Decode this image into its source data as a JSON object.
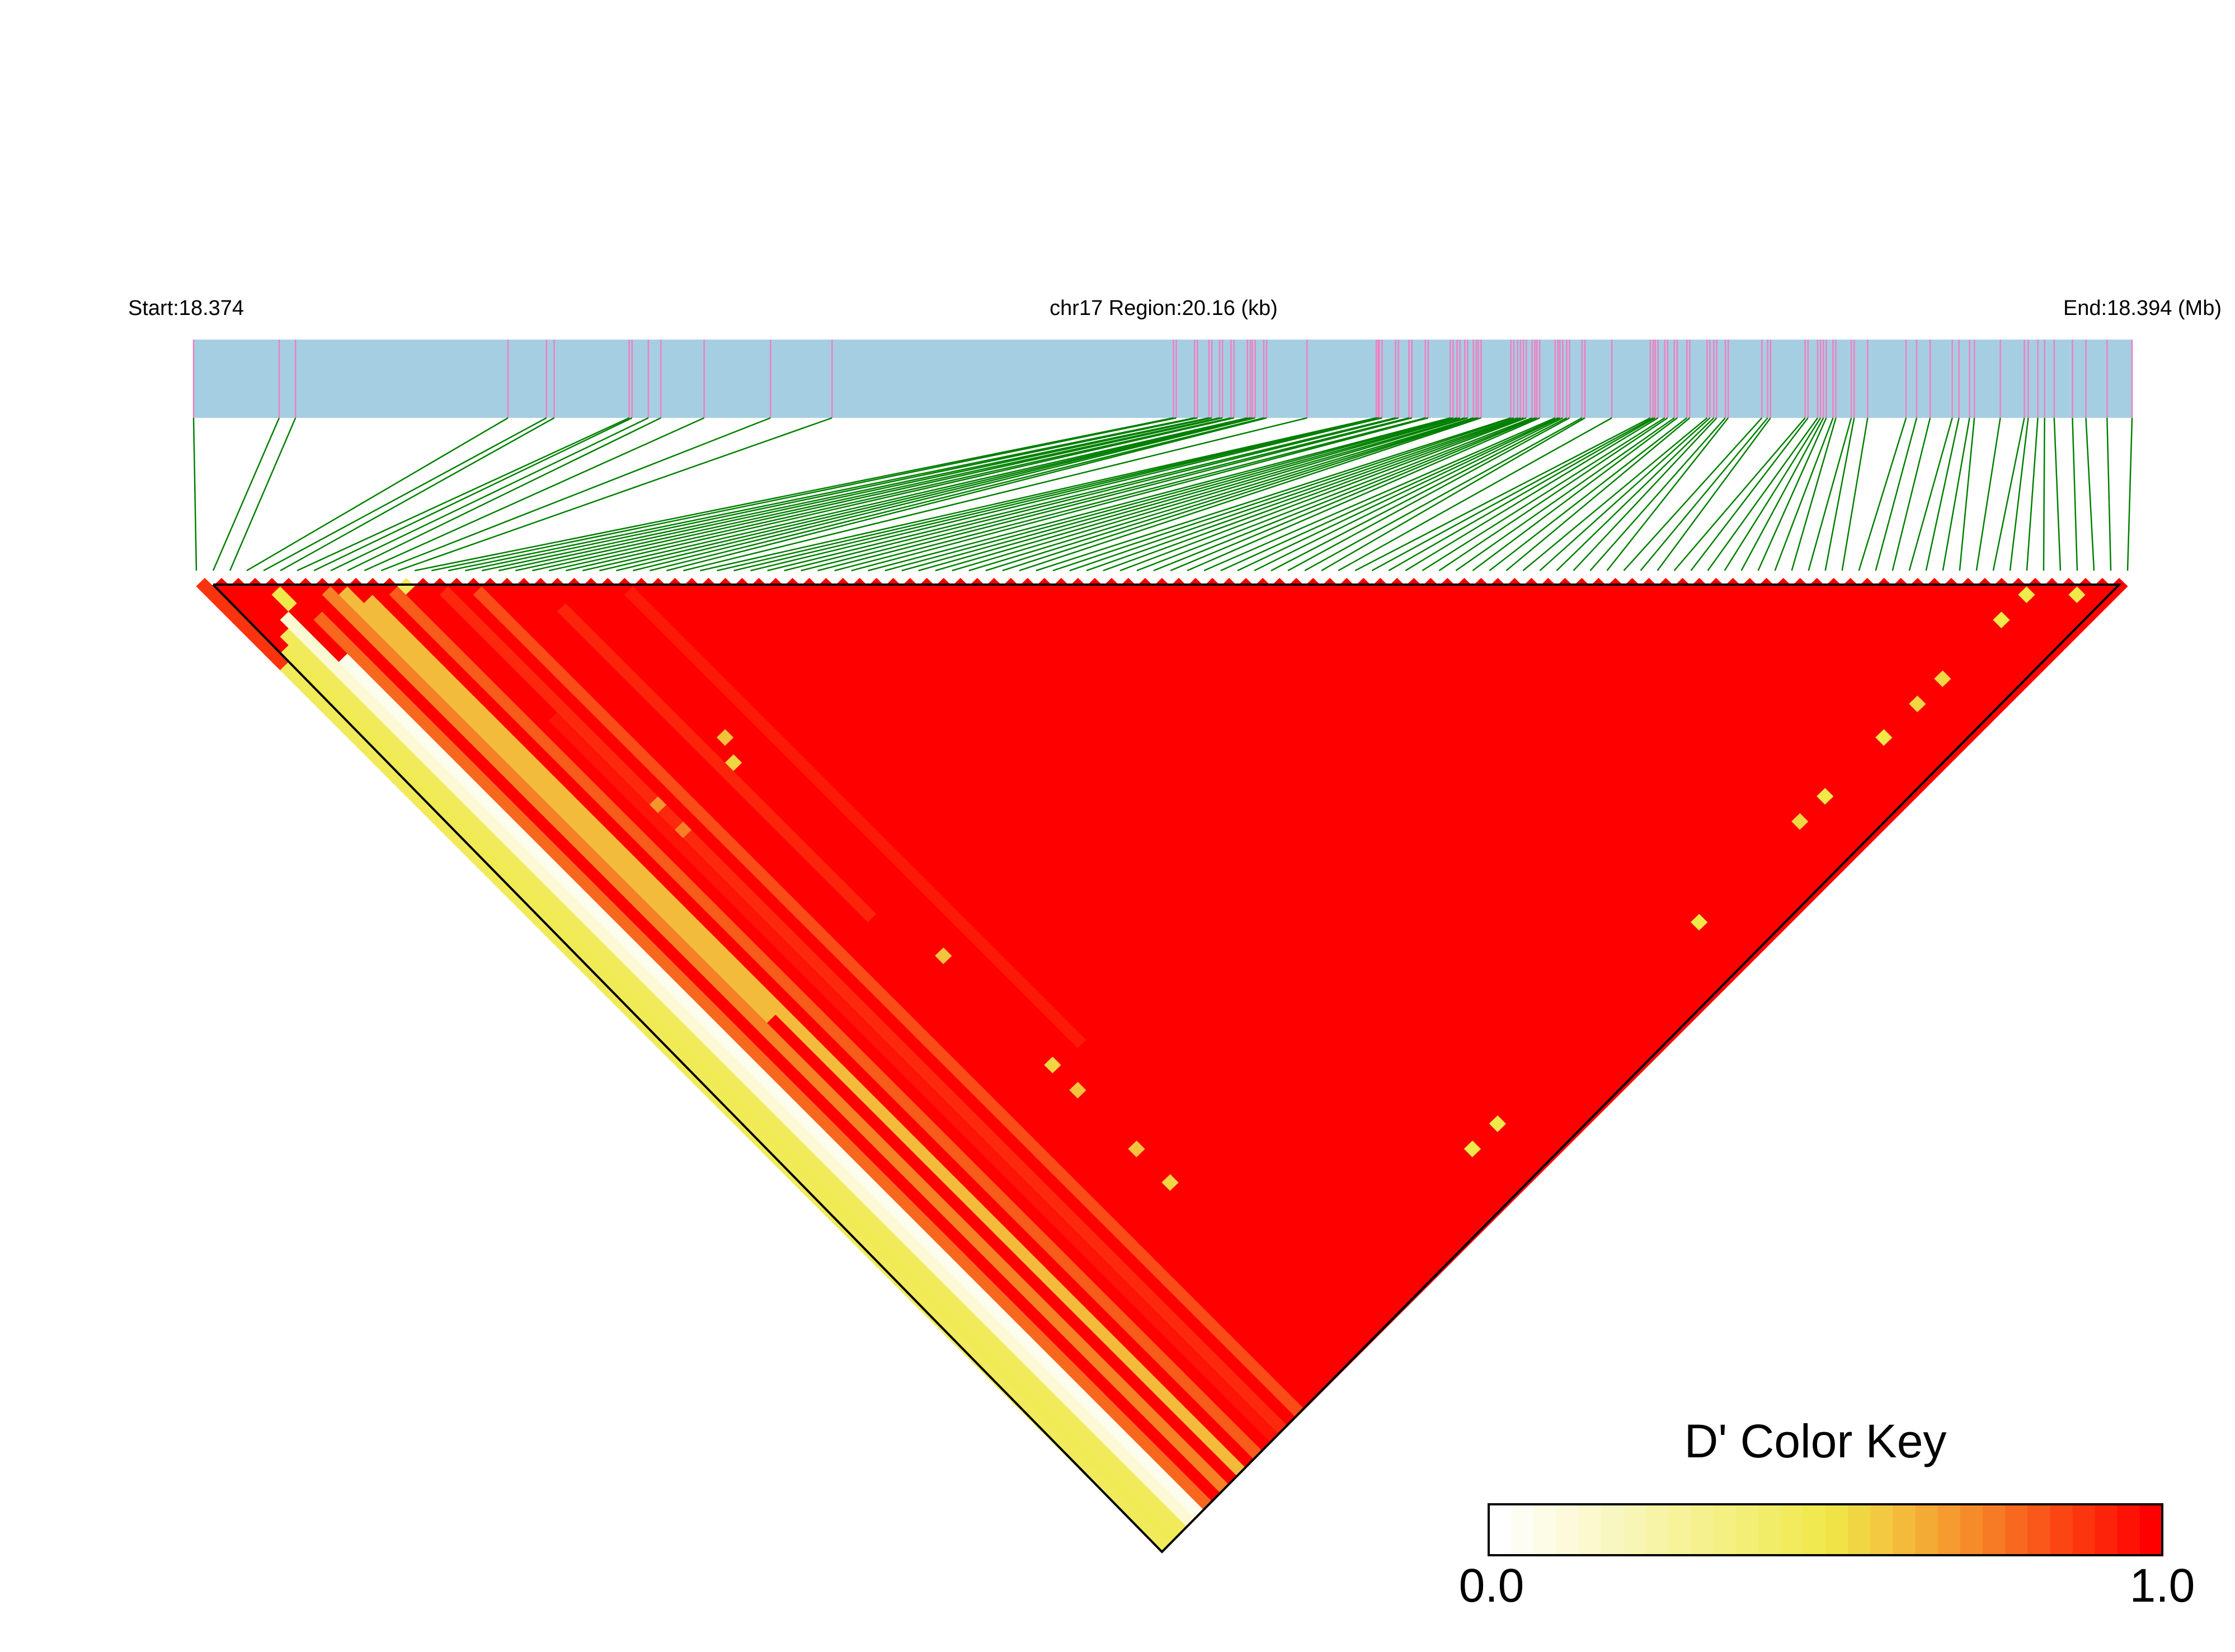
{
  "chart_data": {
    "type": "heatmap",
    "title": "",
    "chromosome": "chr17",
    "labels": {
      "start": "Start:18.374",
      "region": "chr17 Region:20.16 (kb)",
      "end": "End:18.394 (Mb)"
    },
    "region_kb": 20.16,
    "snp_positions_kb": [
      0,
      0.89,
      1.06,
      3.27,
      3.67,
      3.75,
      4.53,
      4.56,
      4.73,
      4.86,
      5.31,
      6.0,
      6.64,
      10.19,
      10.22,
      10.41,
      10.44,
      10.56,
      10.59,
      10.67,
      10.7,
      10.79,
      10.82,
      10.96,
      10.99,
      11.01,
      11.04,
      11.13,
      11.16,
      11.58,
      12.3,
      12.32,
      12.33,
      12.36,
      12.5,
      12.53,
      12.64,
      12.67,
      12.81,
      12.84,
      13.07,
      13.1,
      13.14,
      13.17,
      13.22,
      13.25,
      13.31,
      13.34,
      13.36,
      13.39,
      13.7,
      13.73,
      13.77,
      13.8,
      13.83,
      13.86,
      13.92,
      13.95,
      13.97,
      14.0,
      14.16,
      14.19,
      14.21,
      14.24,
      14.28,
      14.31,
      14.44,
      14.47,
      14.75,
      15.15,
      15.18,
      15.2,
      15.23,
      15.3,
      15.33,
      15.4,
      15.43,
      15.53,
      15.56,
      15.74,
      15.77,
      15.81,
      15.84,
      15.93,
      15.96,
      16.31,
      16.37,
      16.4,
      16.76,
      16.79,
      16.89,
      16.92,
      16.95,
      16.98,
      17.05,
      17.08,
      17.24,
      17.27,
      17.41,
      17.81,
      17.92,
      18.06,
      18.29,
      18.36,
      18.47,
      18.52,
      18.79,
      19.04,
      19.08,
      19.18,
      19.25,
      19.35,
      19.54,
      19.68,
      19.9,
      20.16
    ],
    "metric": "D'",
    "default_value": 1.0,
    "bands": [
      {
        "snp": 0,
        "from": 1,
        "to": 10,
        "value": 0.9
      },
      {
        "snp": 0,
        "from": 11,
        "to": 115,
        "value": 0.45
      },
      {
        "snp": 1,
        "from": 10,
        "to": 115,
        "value": 0.47
      },
      {
        "snp": 2,
        "from": 9,
        "to": 115,
        "value": 0.45
      },
      {
        "snp": 3,
        "from": 8,
        "to": 115,
        "value": 0.12
      },
      {
        "snp": 4,
        "from": 14,
        "to": 115,
        "value": 0.05
      },
      {
        "snp": 5,
        "from": 10,
        "to": 115,
        "value": 0.8
      },
      {
        "snp": 7,
        "from": 9,
        "to": 115,
        "value": 0.75
      },
      {
        "snp": 8,
        "from": 10,
        "to": 60,
        "value": 0.62
      },
      {
        "snp": 9,
        "from": 12,
        "to": 115,
        "value": 0.62
      },
      {
        "snp": 11,
        "from": 13,
        "to": 115,
        "value": 0.82
      },
      {
        "snp": 13,
        "from": 30,
        "to": 115,
        "value": 0.96
      },
      {
        "snp": 14,
        "from": 16,
        "to": 115,
        "value": 0.92
      },
      {
        "snp": 16,
        "from": 18,
        "to": 115,
        "value": 0.85
      },
      {
        "snp": 20,
        "from": 24,
        "to": 60,
        "value": 0.93
      },
      {
        "snp": 25,
        "from": 27,
        "to": 80,
        "value": 0.95
      }
    ],
    "cells": [
      [
        4,
        6,
        0.5
      ],
      [
        4,
        7,
        0.5
      ],
      [
        12,
        13,
        0.45
      ],
      [
        22,
        41,
        0.6
      ],
      [
        21,
        43,
        0.55
      ],
      [
        14,
        41,
        0.7
      ],
      [
        14,
        44,
        0.75
      ],
      [
        22,
        67,
        0.6
      ],
      [
        22,
        80,
        0.55
      ],
      [
        22,
        83,
        0.6
      ],
      [
        22,
        90,
        0.6
      ],
      [
        22,
        94,
        0.55
      ],
      [
        108,
        110,
        0.5
      ],
      [
        111,
        113,
        0.5
      ],
      [
        105,
        110,
        0.5
      ],
      [
        98,
        110,
        0.55
      ],
      [
        95,
        110,
        0.55
      ],
      [
        91,
        110,
        0.5
      ],
      [
        84,
        110,
        0.5
      ],
      [
        81,
        110,
        0.55
      ],
      [
        69,
        110,
        0.5
      ],
      [
        45,
        110,
        0.5
      ],
      [
        42,
        110,
        0.5
      ]
    ],
    "color_key": {
      "title": "D' Color Key",
      "min_label": "0.0",
      "max_label": "1.0",
      "range": [
        0,
        1
      ],
      "steps": 30,
      "stops": [
        {
          "value": 0.0,
          "color": "#ffffff"
        },
        {
          "value": 0.5,
          "color": "#efe94a"
        },
        {
          "value": 0.6,
          "color": "#f2c43e"
        },
        {
          "value": 0.75,
          "color": "#f77f25"
        },
        {
          "value": 1.0,
          "color": "#ff0000"
        }
      ]
    },
    "colors": {
      "gene_bar": "#a6cee3",
      "snp_tick": "#f07fbf",
      "connector": "#008000"
    }
  }
}
